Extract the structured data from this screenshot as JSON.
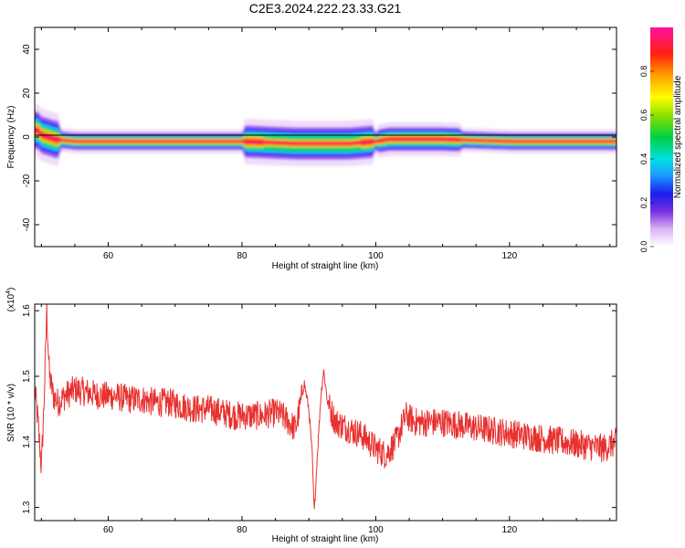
{
  "title": "C2E3.2024.222.23.33.G21",
  "chart_data": [
    {
      "type": "heatmap",
      "xlabel": "Height of straight line (km)",
      "ylabel": "Frequency (Hz)",
      "xlim": [
        49,
        136
      ],
      "ylim": [
        -50,
        50
      ],
      "xticks": [
        60,
        80,
        100,
        120
      ],
      "yticks": [
        -40,
        -20,
        0,
        20,
        40
      ],
      "colorbar": {
        "label": "Normalized spectral amplitude",
        "ticks": [
          "0.0",
          "0.2",
          "0.4",
          "0.6",
          "0.8"
        ],
        "range": [
          0,
          1
        ]
      },
      "ridge": {
        "center_freq_hz": [
          {
            "x": 49.5,
            "y": 3
          },
          {
            "x": 50,
            "y": 1
          },
          {
            "x": 52,
            "y": -1
          },
          {
            "x": 55,
            "y": -2
          },
          {
            "x": 70,
            "y": -2
          },
          {
            "x": 80,
            "y": -2
          },
          {
            "x": 84,
            "y": -2.5
          },
          {
            "x": 88,
            "y": -3
          },
          {
            "x": 92,
            "y": -3
          },
          {
            "x": 96,
            "y": -3
          },
          {
            "x": 100,
            "y": -2
          },
          {
            "x": 102,
            "y": -1
          },
          {
            "x": 110,
            "y": -1
          },
          {
            "x": 120,
            "y": -2
          },
          {
            "x": 136,
            "y": -2
          }
        ]
      }
    },
    {
      "type": "line",
      "xlabel": "Height of straight line (km)",
      "ylabel": "SNR (10 * v/v)",
      "y_multiplier": "(x10",
      "y_multiplier_exp": "4",
      "y_multiplier_close": ")",
      "xlim": [
        49,
        136
      ],
      "ylim": [
        1.28,
        1.61
      ],
      "xticks": [
        60,
        80,
        100,
        120
      ],
      "yticks": [
        1.3,
        1.4,
        1.5,
        1.6
      ],
      "line_color": "#e8312f",
      "series_points": [
        [
          49.0,
          1.48
        ],
        [
          49.5,
          1.43
        ],
        [
          50.0,
          1.36
        ],
        [
          50.4,
          1.46
        ],
        [
          50.8,
          1.6
        ],
        [
          51.2,
          1.5
        ],
        [
          51.8,
          1.47
        ],
        [
          52.5,
          1.46
        ],
        [
          53.5,
          1.47
        ],
        [
          55,
          1.48
        ],
        [
          57,
          1.475
        ],
        [
          59,
          1.47
        ],
        [
          61,
          1.47
        ],
        [
          63,
          1.465
        ],
        [
          65,
          1.465
        ],
        [
          67,
          1.46
        ],
        [
          69,
          1.46
        ],
        [
          71,
          1.455
        ],
        [
          73,
          1.45
        ],
        [
          75,
          1.45
        ],
        [
          77,
          1.445
        ],
        [
          79,
          1.44
        ],
        [
          81,
          1.44
        ],
        [
          83,
          1.44
        ],
        [
          85,
          1.445
        ],
        [
          86,
          1.44
        ],
        [
          87,
          1.43
        ],
        [
          88,
          1.42
        ],
        [
          88.8,
          1.46
        ],
        [
          89.3,
          1.49
        ],
        [
          90,
          1.45
        ],
        [
          90.5,
          1.38
        ],
        [
          90.8,
          1.29
        ],
        [
          91.2,
          1.37
        ],
        [
          91.8,
          1.47
        ],
        [
          92.2,
          1.51
        ],
        [
          92.8,
          1.46
        ],
        [
          94,
          1.43
        ],
        [
          96,
          1.42
        ],
        [
          98,
          1.41
        ],
        [
          100,
          1.39
        ],
        [
          101.5,
          1.38
        ],
        [
          103,
          1.4
        ],
        [
          104.5,
          1.44
        ],
        [
          106,
          1.43
        ],
        [
          108,
          1.43
        ],
        [
          110,
          1.43
        ],
        [
          113,
          1.425
        ],
        [
          116,
          1.42
        ],
        [
          119,
          1.415
        ],
        [
          122,
          1.41
        ],
        [
          125,
          1.405
        ],
        [
          128,
          1.4
        ],
        [
          131,
          1.395
        ],
        [
          134,
          1.39
        ],
        [
          136,
          1.4
        ]
      ]
    }
  ]
}
